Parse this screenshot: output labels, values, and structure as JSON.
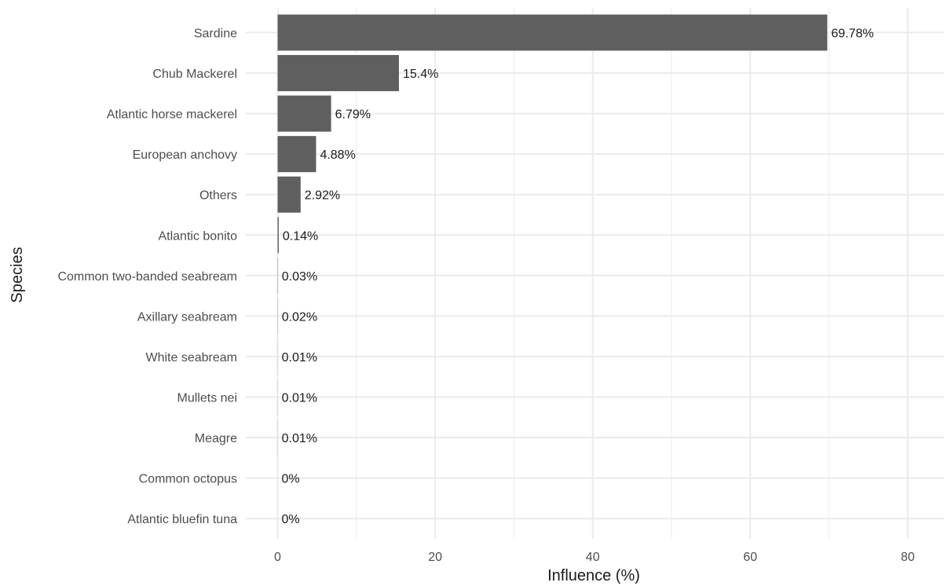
{
  "chart_data": {
    "type": "bar",
    "orientation": "horizontal",
    "categories": [
      "Sardine",
      "Chub Mackerel",
      "Atlantic horse mackerel",
      "European anchovy",
      "Others",
      "Atlantic bonito",
      "Common two-banded seabream",
      "Axillary seabream",
      "White seabream",
      "Mullets nei",
      "Meagre",
      "Common octopus",
      "Atlantic bluefin tuna"
    ],
    "values": [
      69.78,
      15.4,
      6.79,
      4.88,
      2.92,
      0.14,
      0.03,
      0.02,
      0.01,
      0.01,
      0.01,
      0,
      0
    ],
    "data_labels": [
      "69.78%",
      "15.4%",
      "6.79%",
      "4.88%",
      "2.92%",
      "0.14%",
      "0.03%",
      "0.02%",
      "0.01%",
      "0.01%",
      "0.01%",
      "0%",
      "0%"
    ],
    "xlabel": "Influence (%)",
    "ylabel": "Species",
    "xlim": [
      0,
      84
    ],
    "xticks": [
      0,
      20,
      40,
      60,
      80
    ],
    "grid": true,
    "legend": "none",
    "bar_color": "#5f5f5f",
    "grid_color": "#ebebeb"
  }
}
